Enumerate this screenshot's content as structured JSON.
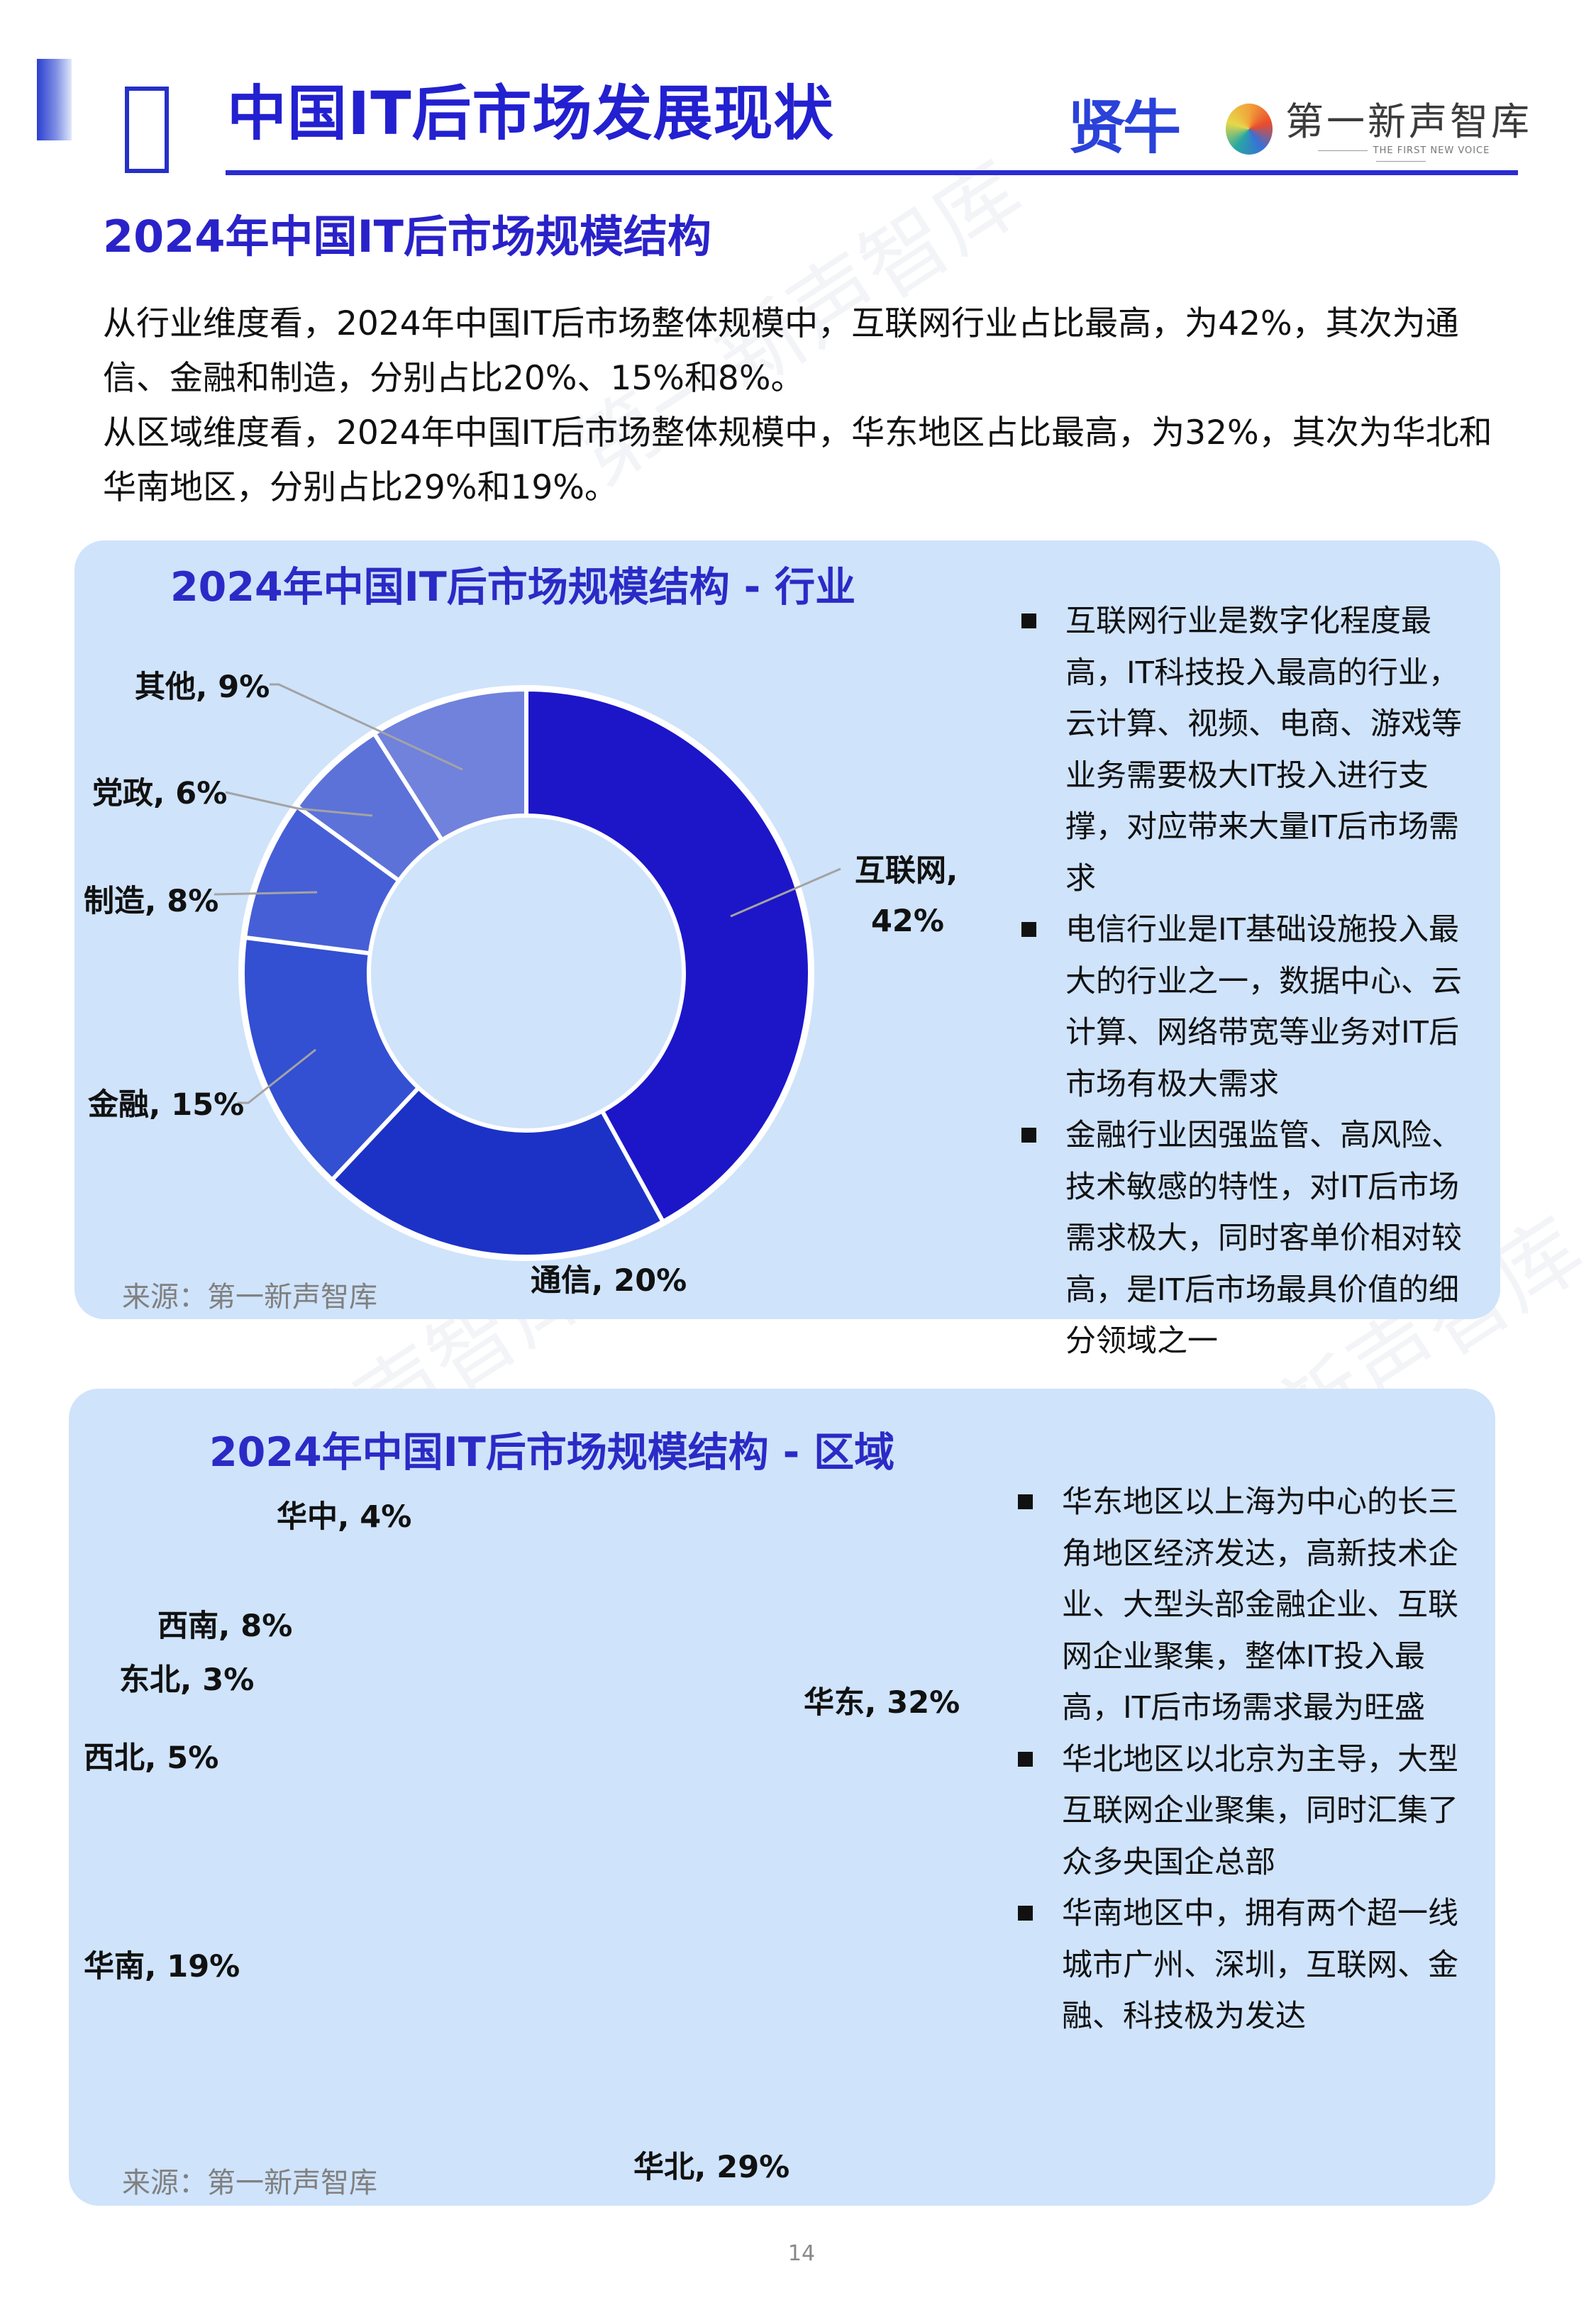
{
  "header": {
    "title": "中国IT后市场发展现状",
    "logo_brand": "贤牛",
    "logo_partner": "第一新声智库",
    "logo_partner_sub": "THE FIRST NEW VOICE"
  },
  "section": {
    "title": "2024年中国IT后市场规模结构",
    "paragraph_industry": "从行业维度看，2024年中国IT后市场整体规模中，互联网行业占比最高，为42%，其次为通信、金融和制造，分别占比20%、15%和8%。",
    "paragraph_region": "从区域维度看，2024年中国IT后市场整体规模中，华东地区占比最高，为32%，其次为华北和华南地区，分别占比29%和19%。"
  },
  "card_industry": {
    "title": "2024年中国IT后市场规模结构 - 行业",
    "source": "来源：第一新声智库",
    "bullets": [
      "互联网行业是数字化程度最高，IT科技投入最高的行业，云计算、视频、电商、游戏等业务需要极大IT投入进行支撑，对应带来大量IT后市场需求",
      "电信行业是IT基础设施投入最大的行业之一，数据中心、云计算、网络带宽等业务对IT后市场有极大需求",
      "金融行业因强监管、高风险、技术敏感的特性，对IT后市场需求极大，同时客单价相对较高，是IT后市场最具价值的细分领域之一"
    ],
    "labels": {
      "internet": "互联网,",
      "internet_pct": "42%",
      "telecom": "通信, 20%",
      "finance": "金融, 15%",
      "manufacturing": "制造, 8%",
      "government": "党政, 6%",
      "other": "其他, 9%"
    }
  },
  "card_region": {
    "title": "2024年中国IT后市场规模结构 - 区域",
    "source": "来源：第一新声智库",
    "bullets": [
      "华东地区以上海为中心的长三角地区经济发达，高新技术企业、大型头部金融企业、互联网企业聚集，整体IT投入最高，IT后市场需求最为旺盛",
      "华北地区以北京为主导，大型互联网企业聚集，同时汇集了众多央国企总部",
      "华南地区中，拥有两个超一线城市广州、深圳，互联网、金融、科技极为发达"
    ],
    "labels": {
      "east": "华东, 32%",
      "north": "华北, 29%",
      "south": "华南, 19%",
      "northwest": "西北, 5%",
      "northeast": "东北, 3%",
      "southwest": "西南, 8%",
      "central": "华中, 4%"
    }
  },
  "page_number": "14",
  "colors": {
    "accent": "#2a22c9",
    "card_bg": "#cfe3fb",
    "slice_1": "#1c16c8",
    "slice_2": "#1c32c6",
    "slice_3": "#334fd2",
    "slice_4": "#465fd6",
    "slice_5": "#5c72d9",
    "slice_6": "#7082dc",
    "slice_7": "#8093e0"
  },
  "chart_data": [
    {
      "type": "pie",
      "variant": "donut",
      "title": "2024年中国IT后市场规模结构 - 行业",
      "categories": [
        "互联网",
        "通信",
        "金融",
        "制造",
        "党政",
        "其他"
      ],
      "values": [
        42,
        20,
        15,
        8,
        6,
        9
      ],
      "unit": "%",
      "start_angle": "12 o'clock, clockwise",
      "colors": [
        "#1c16c8",
        "#1c32c6",
        "#334fd2",
        "#465fd6",
        "#5c72d9",
        "#7082dc"
      ],
      "source": "来源：第一新声智库"
    },
    {
      "type": "pie",
      "variant": "donut",
      "title": "2024年中国IT后市场规模结构 - 区域",
      "categories": [
        "华东",
        "华北",
        "华南",
        "西北",
        "东北",
        "西南",
        "华中"
      ],
      "values": [
        32,
        29,
        19,
        5,
        3,
        8,
        4
      ],
      "unit": "%",
      "start_angle": "12 o'clock, clockwise",
      "colors": [
        "#1c16c8",
        "#1c32c6",
        "#334fd2",
        "#465fd6",
        "#5c72d9",
        "#7082dc",
        "#8093e0"
      ],
      "source": "来源：第一新声智库"
    }
  ]
}
